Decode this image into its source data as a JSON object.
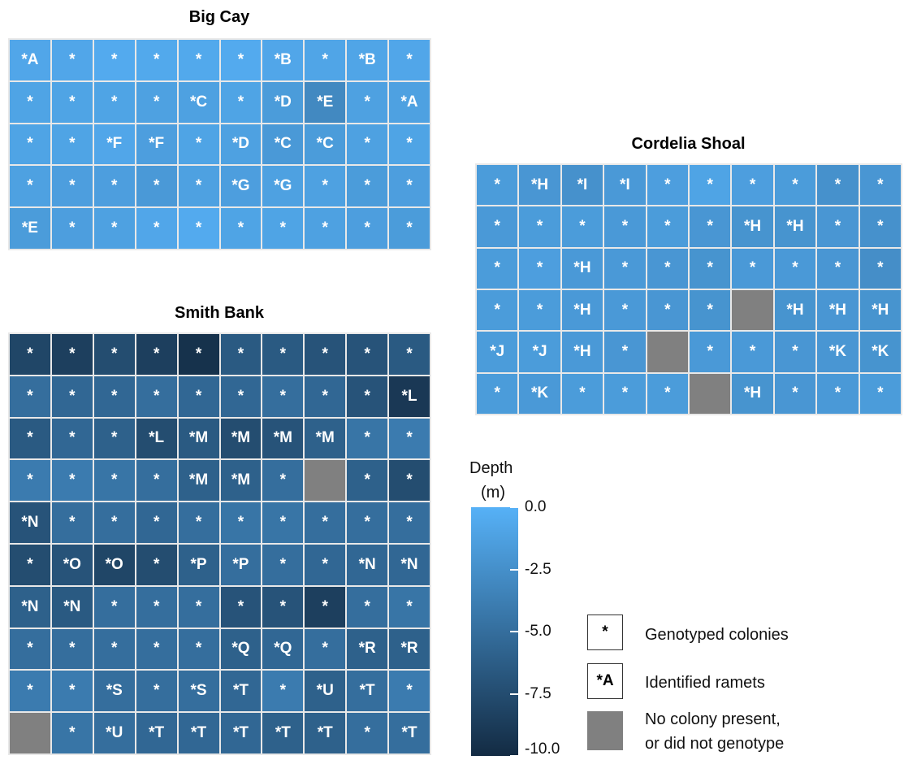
{
  "chart_data": {
    "type": "heatmap",
    "colorbar": {
      "title_line1": "Depth",
      "title_line2": "(m)",
      "range": [
        -10.0,
        0.0
      ],
      "ticks": [
        0.0,
        -2.5,
        -5.0,
        -7.5,
        -10.0
      ],
      "tick_labels": [
        "0.0",
        "-2.5",
        "-5.0",
        "-7.5",
        "-10.0"
      ],
      "color_shallow": "#56b1f7",
      "color_deep": "#132b43"
    },
    "no_data_color": "#808080",
    "panels": [
      {
        "title": "Big Cay",
        "rows": 5,
        "cols": 10,
        "labels": [
          [
            "*A",
            "*",
            "*",
            "*",
            "*",
            "*",
            "*B",
            "*",
            "*B",
            "*"
          ],
          [
            "*",
            "*",
            "*",
            "*",
            "*C",
            "*",
            "*D",
            "*E",
            "*",
            "*A"
          ],
          [
            "*",
            "*",
            "*F",
            "*F",
            "*",
            "*D",
            "*C",
            "*C",
            "*",
            "*"
          ],
          [
            "*",
            "*",
            "*",
            "*",
            "*",
            "*G",
            "*G",
            "*",
            "*",
            "*"
          ],
          [
            "*E",
            "*",
            "*",
            "*",
            "*",
            "*",
            "*",
            "*",
            "*",
            "*"
          ]
        ],
        "depth": [
          [
            -0.8,
            -0.8,
            -0.5,
            -0.6,
            -0.6,
            -0.5,
            -0.8,
            -0.9,
            -0.9,
            -0.8
          ],
          [
            -1.0,
            -1.0,
            -1.0,
            -1.2,
            -1.2,
            -1.0,
            -1.6,
            -3.0,
            -1.2,
            -1.2
          ],
          [
            -1.0,
            -1.0,
            -0.8,
            -1.4,
            -1.0,
            -1.2,
            -1.8,
            -1.6,
            -1.2,
            -1.0
          ],
          [
            -1.2,
            -1.4,
            -1.4,
            -1.8,
            -1.2,
            -1.4,
            -1.2,
            -1.2,
            -1.6,
            -1.4
          ],
          [
            -1.6,
            -1.4,
            -1.2,
            -0.8,
            -0.5,
            -1.0,
            -1.0,
            -1.2,
            -1.4,
            -1.6
          ]
        ]
      },
      {
        "title": "Cordelia Shoal",
        "rows": 6,
        "cols": 10,
        "labels": [
          [
            "*",
            "*H",
            "*I",
            "*I",
            "*",
            "*",
            "*",
            "*",
            "*",
            "*"
          ],
          [
            "*",
            "*",
            "*",
            "*",
            "*",
            "*",
            "*H",
            "*H",
            "*",
            "*"
          ],
          [
            "*",
            "*",
            "*H",
            "*",
            "*",
            "*",
            "*",
            "*",
            "*",
            "*"
          ],
          [
            "*",
            "*",
            "*H",
            "*",
            "*",
            "*",
            null,
            "*H",
            "*H",
            "*H"
          ],
          [
            "*J",
            "*J",
            "*H",
            "*",
            null,
            "*",
            "*",
            "*",
            "*K",
            "*K"
          ],
          [
            "*",
            "*K",
            "*",
            "*",
            "*",
            null,
            "*H",
            "*",
            "*",
            "*"
          ]
        ],
        "depth": [
          [
            -1.6,
            -2.0,
            -2.4,
            -1.8,
            -1.4,
            -1.0,
            -1.4,
            -1.6,
            -2.4,
            -2.0
          ],
          [
            -1.8,
            -1.6,
            -1.6,
            -1.8,
            -1.6,
            -2.0,
            -2.2,
            -2.2,
            -2.0,
            -2.4
          ],
          [
            -1.6,
            -1.4,
            -1.8,
            -1.8,
            -2.0,
            -2.2,
            -1.8,
            -1.8,
            -2.0,
            -2.6
          ],
          [
            -1.6,
            -1.6,
            -1.8,
            -1.8,
            -2.0,
            -2.2,
            null,
            -2.2,
            -2.0,
            -2.2
          ],
          [
            -1.6,
            -1.6,
            -1.8,
            -2.0,
            null,
            -1.8,
            -1.8,
            -2.0,
            -2.0,
            -2.2
          ],
          [
            -1.6,
            -1.8,
            -1.6,
            -1.6,
            -1.6,
            null,
            -2.2,
            -2.0,
            -1.8,
            -1.6
          ]
        ]
      },
      {
        "title": "Smith Bank",
        "rows": 10,
        "cols": 10,
        "labels": [
          [
            "*",
            "*",
            "*",
            "*",
            "*",
            "*",
            "*",
            "*",
            "*",
            "*"
          ],
          [
            "*",
            "*",
            "*",
            "*",
            "*",
            "*",
            "*",
            "*",
            "*",
            "*L"
          ],
          [
            "*",
            "*",
            "*",
            "*L",
            "*M",
            "*M",
            "*M",
            "*M",
            "*",
            "*"
          ],
          [
            "*",
            "*",
            "*",
            "*",
            "*M",
            "*M",
            "*",
            null,
            "*",
            "*"
          ],
          [
            "*N",
            "*",
            "*",
            "*",
            "*",
            "*",
            "*",
            "*",
            "*",
            "*"
          ],
          [
            "*",
            "*O",
            "*O",
            "*",
            "*P",
            "*P",
            "*",
            "*",
            "*N",
            "*N"
          ],
          [
            "*N",
            "*N",
            "*",
            "*",
            "*",
            "*",
            "*",
            "*",
            "*",
            "*"
          ],
          [
            "*",
            "*",
            "*",
            "*",
            "*",
            "*Q",
            "*Q",
            "*",
            "*R",
            "*R"
          ],
          [
            "*",
            "*",
            "*S",
            "*",
            "*S",
            "*T",
            "*",
            "*U",
            "*T",
            "*"
          ],
          [
            null,
            "*",
            "*U",
            "*T",
            "*T",
            "*T",
            "*T",
            "*T",
            "*",
            "*T"
          ]
        ],
        "depth": [
          [
            -8.0,
            -8.5,
            -7.5,
            -8.5,
            -9.5,
            -6.5,
            -6.5,
            -7.0,
            -7.0,
            -6.5
          ],
          [
            -5.0,
            -5.5,
            -5.5,
            -5.0,
            -5.5,
            -5.5,
            -5.0,
            -5.5,
            -7.0,
            -9.0
          ],
          [
            -6.5,
            -5.5,
            -6.0,
            -7.5,
            -6.5,
            -7.5,
            -7.0,
            -6.0,
            -4.5,
            -4.0
          ],
          [
            -4.0,
            -4.0,
            -4.5,
            -5.0,
            -6.0,
            -6.0,
            -5.0,
            null,
            -6.0,
            -7.5
          ],
          [
            -7.0,
            -5.0,
            -5.0,
            -5.5,
            -5.0,
            -4.5,
            -4.5,
            -5.0,
            -5.0,
            -5.0
          ],
          [
            -7.5,
            -7.0,
            -8.0,
            -7.5,
            -6.0,
            -5.0,
            -5.0,
            -5.5,
            -5.5,
            -5.5
          ],
          [
            -6.0,
            -6.5,
            -5.0,
            -5.0,
            -5.0,
            -7.0,
            -7.0,
            -8.5,
            -5.0,
            -4.5
          ],
          [
            -5.0,
            -5.0,
            -5.0,
            -5.0,
            -5.0,
            -6.0,
            -5.5,
            -5.0,
            -6.0,
            -6.0
          ],
          [
            -4.0,
            -4.0,
            -5.0,
            -5.0,
            -5.0,
            -5.5,
            -4.0,
            -6.0,
            -5.0,
            -4.0
          ],
          [
            null,
            -4.5,
            -5.0,
            -5.5,
            -5.5,
            -5.5,
            -6.0,
            -6.0,
            -5.0,
            -5.0
          ]
        ]
      }
    ]
  },
  "legend": {
    "genotyped_symbol": "*",
    "genotyped_label": "Genotyped colonies",
    "ramet_symbol": "*A",
    "ramet_label": "Identified ramets",
    "nodata_label_line1": "No colony present,",
    "nodata_label_line2": "or did not genotype"
  }
}
